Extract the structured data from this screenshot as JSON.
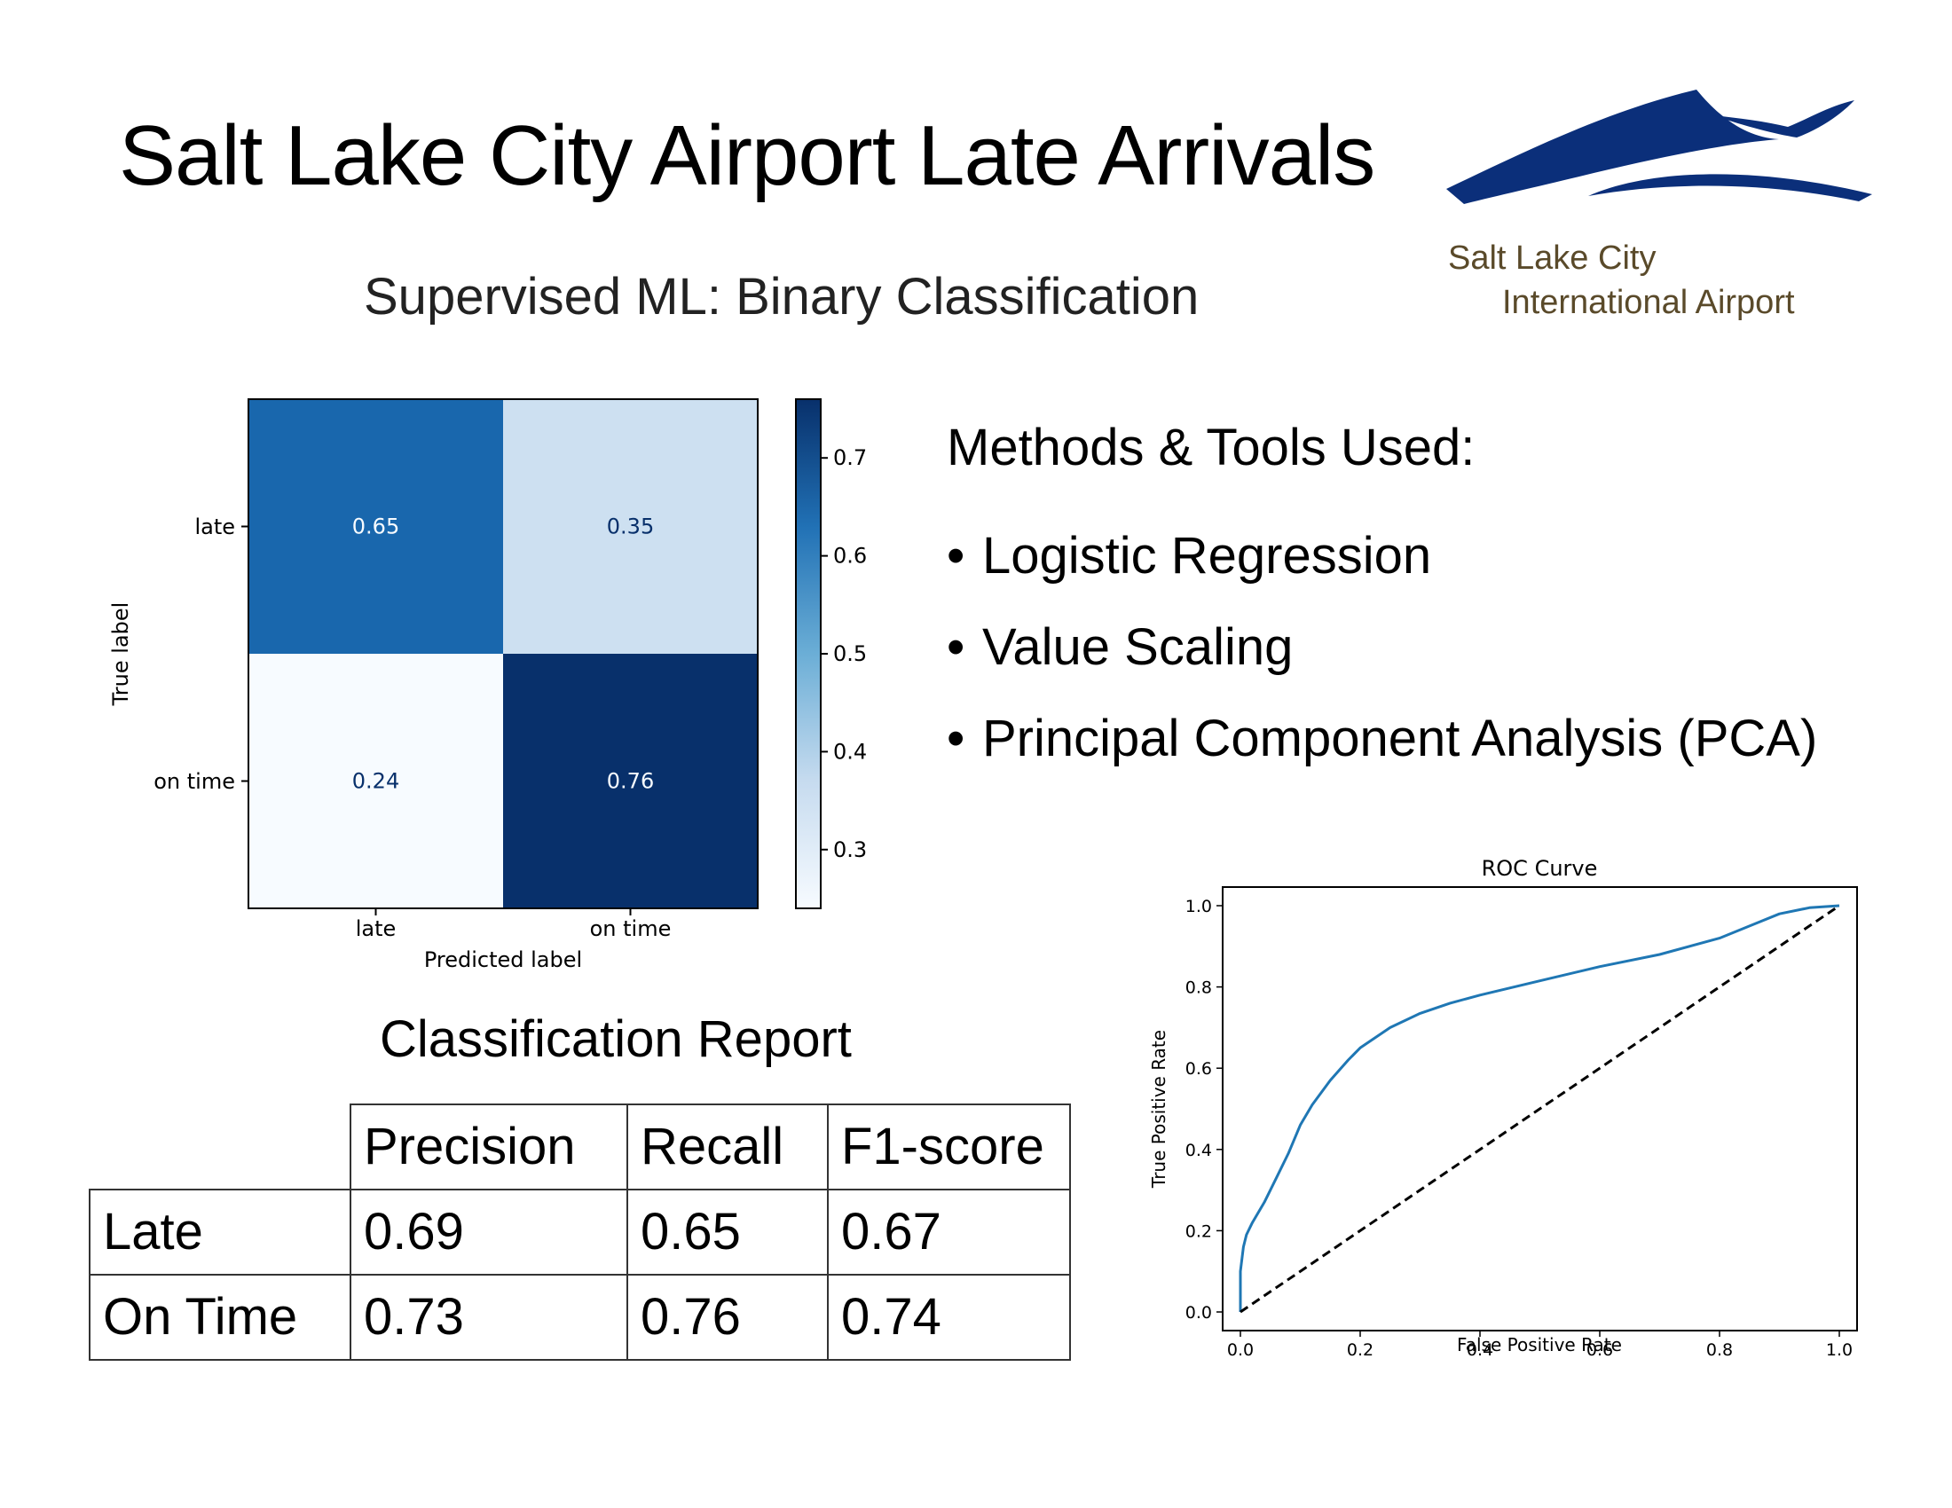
{
  "page": {
    "title": "Salt Lake City Airport Late Arrivals",
    "subtitle": "Supervised ML: Binary Classification"
  },
  "logo": {
    "line1": "Salt Lake City",
    "line2": "International Airport",
    "color": "#0b2f7a",
    "text_color": "#5a4a2a"
  },
  "methods": {
    "heading": "Methods & Tools Used:",
    "bullet": "•",
    "items": [
      "Logistic Regression",
      "Value Scaling",
      "Principal Component Analysis (PCA)"
    ]
  },
  "report": {
    "title": "Classification Report",
    "headers": [
      "Precision",
      "Recall",
      "F1-score"
    ],
    "rows": [
      {
        "label": "Late",
        "values": [
          "0.69",
          "0.65",
          "0.67"
        ]
      },
      {
        "label": "On Time",
        "values": [
          "0.73",
          "0.76",
          "0.74"
        ]
      }
    ]
  },
  "chart_data": [
    {
      "type": "heatmap",
      "title": "",
      "xlabel": "Predicted label",
      "ylabel": "True label",
      "x_categories": [
        "late",
        "on time"
      ],
      "y_categories": [
        "late",
        "on time"
      ],
      "values": [
        [
          0.65,
          0.35
        ],
        [
          0.24,
          0.76
        ]
      ],
      "cell_labels": [
        [
          "0.65",
          "0.35"
        ],
        [
          "0.24",
          "0.76"
        ]
      ],
      "colormap": "Blues",
      "colorbar": {
        "range": [
          0.24,
          0.76
        ],
        "ticks": [
          "0.3",
          "0.4",
          "0.5",
          "0.6",
          "0.7"
        ]
      }
    },
    {
      "type": "line",
      "title": "ROC Curve",
      "xlabel": "False Positive Rate",
      "ylabel": "True Positive Rate",
      "xlim": [
        0.0,
        1.0
      ],
      "ylim": [
        0.0,
        1.0
      ],
      "xticks": [
        "0.0",
        "0.2",
        "0.4",
        "0.6",
        "0.8",
        "1.0"
      ],
      "yticks": [
        "0.0",
        "0.2",
        "0.4",
        "0.6",
        "0.8",
        "1.0"
      ],
      "series": [
        {
          "color": "#1f77b4",
          "style": "solid",
          "x": [
            0.0,
            0.0,
            0.005,
            0.01,
            0.02,
            0.04,
            0.06,
            0.08,
            0.1,
            0.12,
            0.15,
            0.18,
            0.2,
            0.25,
            0.3,
            0.35,
            0.4,
            0.5,
            0.6,
            0.7,
            0.8,
            0.85,
            0.9,
            0.95,
            1.0
          ],
          "y": [
            0.0,
            0.1,
            0.16,
            0.19,
            0.22,
            0.27,
            0.33,
            0.39,
            0.46,
            0.51,
            0.57,
            0.62,
            0.65,
            0.7,
            0.735,
            0.76,
            0.78,
            0.815,
            0.85,
            0.88,
            0.92,
            0.95,
            0.98,
            0.995,
            1.0
          ]
        },
        {
          "color": "#000000",
          "style": "dashed",
          "x": [
            0.0,
            1.0
          ],
          "y": [
            0.0,
            1.0
          ]
        }
      ]
    }
  ]
}
